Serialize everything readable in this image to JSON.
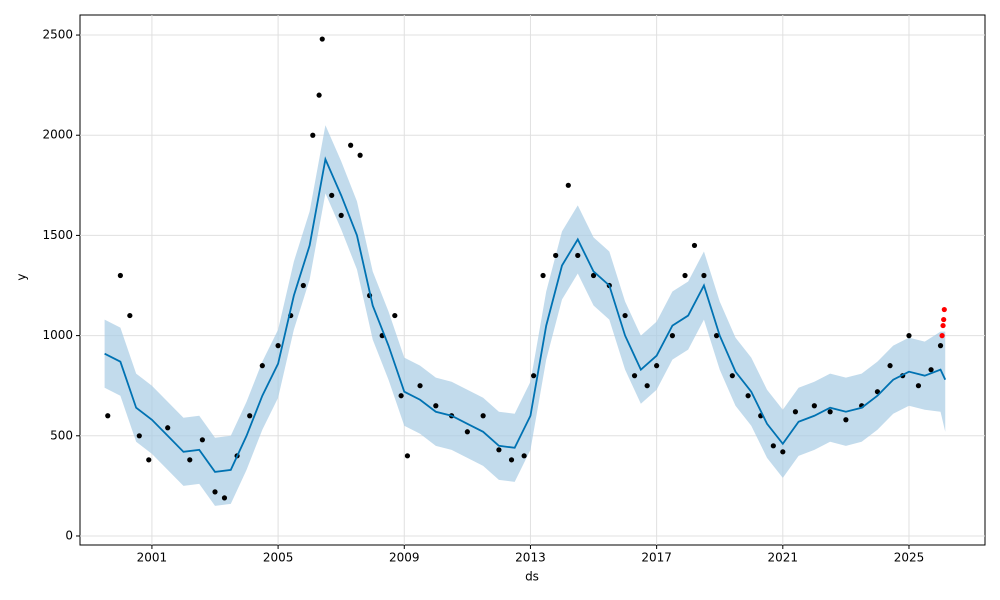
{
  "chart_data": {
    "type": "forecast",
    "xlabel": "ds",
    "ylabel": "y",
    "xlim": [
      1998.72,
      2027.41
    ],
    "ylim": [
      -45,
      2600
    ],
    "xticks": [
      2001,
      2005,
      2009,
      2013,
      2017,
      2021,
      2025
    ],
    "yticks": [
      0,
      500,
      1000,
      1500,
      2000,
      2500
    ],
    "grid": true,
    "forecast": {
      "color": "#0072b2",
      "band_color": "#a8cce4",
      "x": [
        1999.5,
        2000.0,
        2000.5,
        2001.0,
        2001.5,
        2002.0,
        2002.5,
        2003.0,
        2003.5,
        2004.0,
        2004.5,
        2005.0,
        2005.5,
        2006.0,
        2006.5,
        2007.0,
        2007.5,
        2008.0,
        2008.5,
        2009.0,
        2009.5,
        2010.0,
        2010.5,
        2011.0,
        2011.5,
        2012.0,
        2012.5,
        2013.0,
        2013.5,
        2014.0,
        2014.5,
        2015.0,
        2015.5,
        2016.0,
        2016.5,
        2017.0,
        2017.5,
        2018.0,
        2018.5,
        2019.0,
        2019.5,
        2020.0,
        2020.5,
        2021.0,
        2021.5,
        2022.0,
        2022.5,
        2023.0,
        2023.5,
        2024.0,
        2024.5,
        2025.0,
        2025.5,
        2026.0,
        2026.15
      ],
      "values": [
        910,
        870,
        640,
        580,
        500,
        420,
        430,
        320,
        330,
        500,
        700,
        860,
        1200,
        1450,
        1880,
        1700,
        1500,
        1150,
        950,
        720,
        680,
        620,
        600,
        560,
        520,
        450,
        440,
        600,
        1050,
        1350,
        1480,
        1320,
        1250,
        1000,
        830,
        900,
        1050,
        1100,
        1250,
        1000,
        820,
        720,
        560,
        460,
        570,
        600,
        640,
        620,
        640,
        700,
        780,
        820,
        800,
        830,
        780
      ],
      "lower": [
        740,
        700,
        470,
        410,
        330,
        250,
        260,
        150,
        160,
        330,
        530,
        690,
        1030,
        1280,
        1710,
        1530,
        1330,
        980,
        780,
        550,
        510,
        450,
        430,
        390,
        350,
        280,
        270,
        430,
        880,
        1180,
        1310,
        1150,
        1080,
        830,
        660,
        730,
        880,
        930,
        1080,
        830,
        650,
        550,
        390,
        290,
        400,
        430,
        470,
        450,
        470,
        530,
        610,
        650,
        630,
        620,
        520
      ],
      "upper": [
        1080,
        1040,
        810,
        750,
        670,
        590,
        600,
        490,
        500,
        670,
        870,
        1030,
        1370,
        1620,
        2050,
        1870,
        1670,
        1320,
        1120,
        890,
        850,
        790,
        770,
        730,
        690,
        620,
        610,
        770,
        1220,
        1520,
        1650,
        1490,
        1420,
        1170,
        1000,
        1070,
        1220,
        1270,
        1420,
        1170,
        990,
        890,
        730,
        630,
        740,
        770,
        810,
        790,
        810,
        870,
        950,
        990,
        970,
        1020,
        1020
      ]
    },
    "actual": {
      "color": "#000000",
      "x": [
        1999.6,
        2000.0,
        2000.3,
        2000.6,
        2000.9,
        2001.5,
        2002.2,
        2002.6,
        2003.0,
        2003.3,
        2003.7,
        2004.1,
        2004.5,
        2005.0,
        2005.4,
        2005.8,
        2006.1,
        2006.3,
        2006.4,
        2006.7,
        2007.0,
        2007.3,
        2007.6,
        2007.9,
        2008.3,
        2008.7,
        2008.9,
        2009.1,
        2009.5,
        2010.0,
        2010.5,
        2011.0,
        2011.5,
        2012.0,
        2012.4,
        2012.8,
        2013.1,
        2013.4,
        2013.8,
        2014.2,
        2014.5,
        2015.0,
        2015.5,
        2016.0,
        2016.3,
        2016.7,
        2017.0,
        2017.5,
        2017.9,
        2018.2,
        2018.5,
        2018.9,
        2019.4,
        2019.9,
        2020.3,
        2020.7,
        2021.0,
        2021.4,
        2022.0,
        2022.5,
        2023.0,
        2023.5,
        2024.0,
        2024.4,
        2024.8,
        2025.0,
        2025.3,
        2025.7,
        2026.0
      ],
      "values": [
        600,
        1300,
        1100,
        500,
        380,
        540,
        380,
        480,
        220,
        190,
        400,
        600,
        850,
        950,
        1100,
        1250,
        2000,
        2200,
        2480,
        1700,
        1600,
        1950,
        1900,
        1200,
        1000,
        1100,
        700,
        400,
        750,
        650,
        600,
        520,
        600,
        430,
        380,
        400,
        800,
        1300,
        1400,
        1750,
        1400,
        1300,
        1250,
        1100,
        800,
        750,
        850,
        1000,
        1300,
        1450,
        1300,
        1000,
        800,
        700,
        600,
        450,
        420,
        620,
        650,
        620,
        580,
        650,
        720,
        850,
        800,
        1000,
        750,
        830,
        950
      ]
    },
    "test": {
      "color": "#ff0000",
      "x": [
        2026.05,
        2026.08,
        2026.1,
        2026.12
      ],
      "values": [
        1000,
        1050,
        1080,
        1130
      ]
    }
  }
}
